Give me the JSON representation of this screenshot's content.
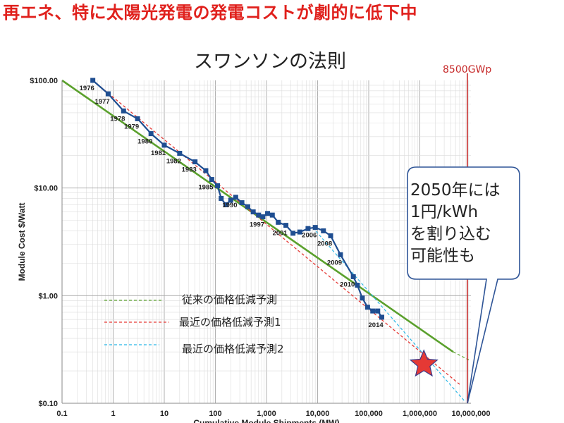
{
  "headline": "再エネ、特に太陽光発電の発電コストが劇的に低下中",
  "colors": {
    "headline": "#e0201c",
    "data_line": "#1f4e91",
    "traditional": "#5aa02c",
    "recent1": "#e53935",
    "recent2": "#29b6e6",
    "marker_line": "#c62828",
    "star": "#e53935",
    "callout_border": "#2f5597"
  },
  "callout": {
    "lines": [
      "2050年には",
      "1円/kWh",
      "を割り込む",
      "可能性も"
    ]
  },
  "chart_data": {
    "type": "line",
    "title": "スワンソンの法則",
    "xlabel": "Cumulative Module Shipments (MW)",
    "ylabel": "Module Cost $/Watt",
    "x_scale": "log",
    "y_scale": "log",
    "xlim": [
      0.1,
      10000000
    ],
    "ylim": [
      0.1,
      100
    ],
    "grid": true,
    "x_ticks": [
      {
        "value": 0.1,
        "label": "0.1"
      },
      {
        "value": 1,
        "label": "1"
      },
      {
        "value": 10,
        "label": "10"
      },
      {
        "value": 100,
        "label": "100"
      },
      {
        "value": 1000,
        "label": "1,000"
      },
      {
        "value": 10000,
        "label": "10,000"
      },
      {
        "value": 100000,
        "label": "100,000"
      },
      {
        "value": 1000000,
        "label": "1,000,000"
      },
      {
        "value": 10000000,
        "label": "10,000,000"
      }
    ],
    "y_ticks": [
      {
        "value": 0.1,
        "label": "$0.10"
      },
      {
        "value": 1,
        "label": "$1.00"
      },
      {
        "value": 10,
        "label": "$10.00"
      },
      {
        "value": 100,
        "label": "$100.00"
      }
    ],
    "series": [
      {
        "points": [
          {
            "x": 0.4,
            "y": 100,
            "label": "1976"
          },
          {
            "x": 0.8,
            "y": 75,
            "label": "1977"
          },
          {
            "x": 1.6,
            "y": 52,
            "label": "1978"
          },
          {
            "x": 3.0,
            "y": 44,
            "label": "1979"
          },
          {
            "x": 5.5,
            "y": 32,
            "label": "1980"
          },
          {
            "x": 10,
            "y": 25,
            "label": "1981"
          },
          {
            "x": 20,
            "y": 21,
            "label": "1982"
          },
          {
            "x": 40,
            "y": 17.5,
            "label": "1983"
          },
          {
            "x": 65,
            "y": 14.5,
            "label": ""
          },
          {
            "x": 85,
            "y": 12,
            "label": "1985"
          },
          {
            "x": 110,
            "y": 10.5,
            "label": ""
          },
          {
            "x": 130,
            "y": 8,
            "label": ""
          },
          {
            "x": 160,
            "y": 7,
            "label": ""
          },
          {
            "x": 200,
            "y": 7.7,
            "label": ""
          },
          {
            "x": 250,
            "y": 8.2,
            "label": "1990"
          },
          {
            "x": 330,
            "y": 7.3,
            "label": ""
          },
          {
            "x": 430,
            "y": 6.7,
            "label": ""
          },
          {
            "x": 550,
            "y": 6.0,
            "label": ""
          },
          {
            "x": 700,
            "y": 5.6,
            "label": ""
          },
          {
            "x": 850,
            "y": 5.4,
            "label": "1997"
          },
          {
            "x": 1050,
            "y": 5.8,
            "label": ""
          },
          {
            "x": 1300,
            "y": 5.6,
            "label": ""
          },
          {
            "x": 1700,
            "y": 4.8,
            "label": ""
          },
          {
            "x": 2400,
            "y": 4.5,
            "label": "2001"
          },
          {
            "x": 3300,
            "y": 3.8,
            "label": ""
          },
          {
            "x": 4500,
            "y": 3.9,
            "label": ""
          },
          {
            "x": 6500,
            "y": 4.2,
            "label": ""
          },
          {
            "x": 9000,
            "y": 4.3,
            "label": "2006"
          },
          {
            "x": 13000,
            "y": 4.0,
            "label": ""
          },
          {
            "x": 18000,
            "y": 3.6,
            "label": "2008"
          },
          {
            "x": 28000,
            "y": 2.4,
            "label": "2009"
          },
          {
            "x": 50000,
            "y": 1.5,
            "label": "2010"
          },
          {
            "x": 60000,
            "y": 1.25,
            "label": ""
          },
          {
            "x": 75000,
            "y": 0.95,
            "label": ""
          },
          {
            "x": 95000,
            "y": 0.78,
            "label": ""
          },
          {
            "x": 120000,
            "y": 0.72,
            "label": ""
          },
          {
            "x": 150000,
            "y": 0.72,
            "label": ""
          },
          {
            "x": 180000,
            "y": 0.63,
            "label": "2014"
          }
        ]
      }
    ],
    "trend_lines": [
      {
        "name": "従来の価格低減予測",
        "points": [
          [
            0.1,
            100
          ],
          [
            4500000,
            0.3
          ]
        ]
      },
      {
        "name": "最近の価格低減予測1",
        "points": [
          [
            0.4,
            100
          ],
          [
            6000000,
            0.15
          ]
        ]
      },
      {
        "name": "最近の価格低減予測2",
        "points": [
          [
            8000,
            4.3
          ],
          [
            7500000,
            0.105
          ]
        ]
      }
    ],
    "marker": {
      "label": "8500GWp",
      "x": 8500000
    },
    "star": {
      "x": 1200000,
      "y": 0.23
    }
  }
}
